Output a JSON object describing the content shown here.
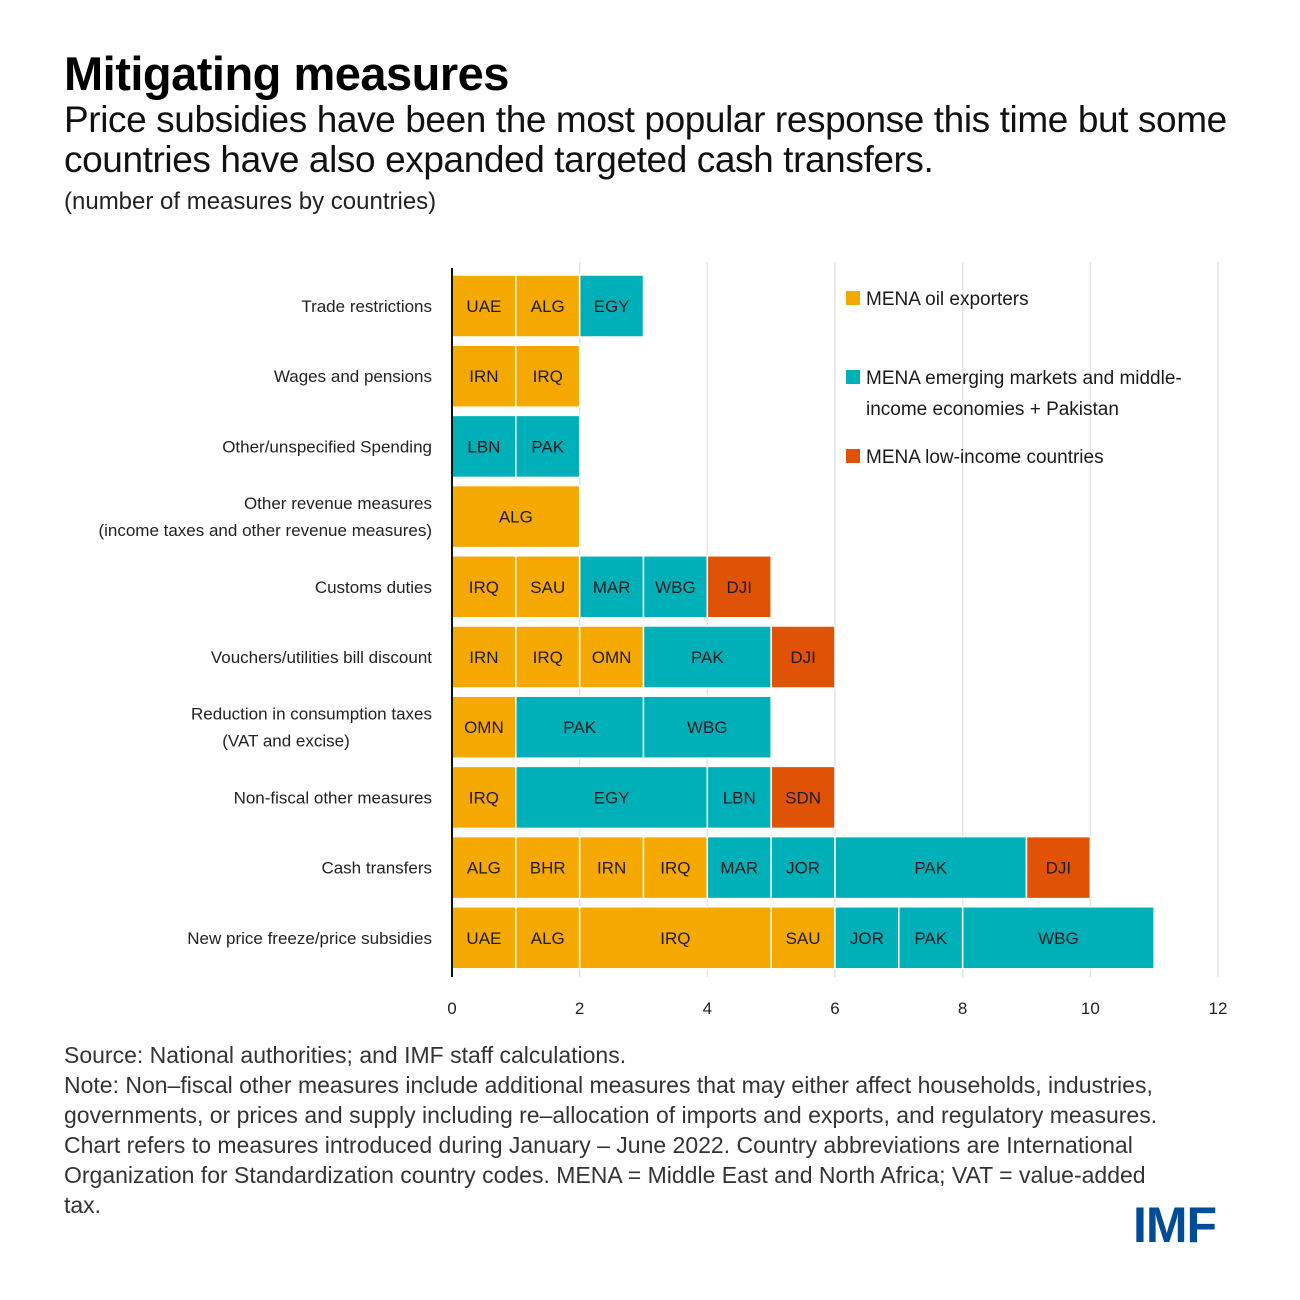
{
  "header": {
    "title": "Mitigating measures",
    "subtitle": "Price subsidies have been the most popular response this time but some countries have also expanded targeted cash transfers.",
    "units": "(number of measures by countries)"
  },
  "chart_data": {
    "type": "bar",
    "orientation": "horizontal-stacked",
    "title": "Mitigating measures",
    "xlabel": "",
    "ylabel": "",
    "xlim": [
      0,
      12
    ],
    "xticks": [
      0,
      2,
      4,
      6,
      8,
      10,
      12
    ],
    "grid": true,
    "legend_position": "top-right",
    "groups": [
      {
        "key": "oil",
        "name": "MENA oil exporters",
        "color": "#F5A800"
      },
      {
        "key": "em",
        "name": "MENA emerging markets and middle-income economies + Pakistan",
        "color": "#00B0B9"
      },
      {
        "key": "lic",
        "name": "MENA low-income countries",
        "color": "#E05206"
      }
    ],
    "categories": [
      {
        "label": [
          "Trade restrictions"
        ],
        "total": 3,
        "segments": [
          {
            "code": "UAE",
            "group": "oil",
            "value": 1
          },
          {
            "code": "ALG",
            "group": "oil",
            "value": 1
          },
          {
            "code": "EGY",
            "group": "em",
            "value": 1
          }
        ]
      },
      {
        "label": [
          "Wages and pensions"
        ],
        "total": 2,
        "segments": [
          {
            "code": "IRN",
            "group": "oil",
            "value": 1
          },
          {
            "code": "IRQ",
            "group": "oil",
            "value": 1
          }
        ]
      },
      {
        "label": [
          "Other/unspecified Spending"
        ],
        "total": 2,
        "segments": [
          {
            "code": "LBN",
            "group": "em",
            "value": 1
          },
          {
            "code": "PAK",
            "group": "em",
            "value": 1
          }
        ]
      },
      {
        "label": [
          "Other revenue measures",
          "(income taxes and other revenue measures)"
        ],
        "total": 2,
        "segments": [
          {
            "code": "ALG",
            "group": "oil",
            "value": 2
          }
        ]
      },
      {
        "label": [
          "Customs duties"
        ],
        "total": 5,
        "segments": [
          {
            "code": "IRQ",
            "group": "oil",
            "value": 1
          },
          {
            "code": "SAU",
            "group": "oil",
            "value": 1
          },
          {
            "code": "MAR",
            "group": "em",
            "value": 1
          },
          {
            "code": "WBG",
            "group": "em",
            "value": 1
          },
          {
            "code": "DJI",
            "group": "lic",
            "value": 1
          }
        ]
      },
      {
        "label": [
          "Vouchers/utilities bill discount"
        ],
        "total": 6,
        "segments": [
          {
            "code": "IRN",
            "group": "oil",
            "value": 1
          },
          {
            "code": "IRQ",
            "group": "oil",
            "value": 1
          },
          {
            "code": "OMN",
            "group": "oil",
            "value": 1
          },
          {
            "code": "PAK",
            "group": "em",
            "value": 2
          },
          {
            "code": "DJI",
            "group": "lic",
            "value": 1
          }
        ]
      },
      {
        "label": [
          "Reduction in consumption taxes",
          "(VAT and excise)"
        ],
        "total": 5,
        "segments": [
          {
            "code": "OMN",
            "group": "oil",
            "value": 1
          },
          {
            "code": "PAK",
            "group": "em",
            "value": 2
          },
          {
            "code": "WBG",
            "group": "em",
            "value": 2
          }
        ]
      },
      {
        "label": [
          "Non-fiscal other measures"
        ],
        "total": 6,
        "segments": [
          {
            "code": "IRQ",
            "group": "oil",
            "value": 1
          },
          {
            "code": "EGY",
            "group": "em",
            "value": 3
          },
          {
            "code": "LBN",
            "group": "em",
            "value": 1
          },
          {
            "code": "SDN",
            "group": "lic",
            "value": 1
          }
        ]
      },
      {
        "label": [
          "Cash transfers"
        ],
        "total": 10,
        "segments": [
          {
            "code": "ALG",
            "group": "oil",
            "value": 1
          },
          {
            "code": "BHR",
            "group": "oil",
            "value": 1
          },
          {
            "code": "IRN",
            "group": "oil",
            "value": 1
          },
          {
            "code": "IRQ",
            "group": "oil",
            "value": 1
          },
          {
            "code": "MAR",
            "group": "em",
            "value": 1
          },
          {
            "code": "JOR",
            "group": "em",
            "value": 1
          },
          {
            "code": "PAK",
            "group": "em",
            "value": 3
          },
          {
            "code": "DJI",
            "group": "lic",
            "value": 1
          }
        ]
      },
      {
        "label": [
          "New price freeze/price subsidies"
        ],
        "total": 11,
        "segments": [
          {
            "code": "UAE",
            "group": "oil",
            "value": 1
          },
          {
            "code": "ALG",
            "group": "oil",
            "value": 1
          },
          {
            "code": "IRQ",
            "group": "oil",
            "value": 3
          },
          {
            "code": "SAU",
            "group": "oil",
            "value": 1
          },
          {
            "code": "JOR",
            "group": "em",
            "value": 1
          },
          {
            "code": "PAK",
            "group": "em",
            "value": 1
          },
          {
            "code": "WBG",
            "group": "em",
            "value": 3
          }
        ]
      }
    ],
    "legend": [
      {
        "group": "oil",
        "lines": [
          "MENA oil exporters"
        ]
      },
      {
        "group": "em",
        "lines": [
          "MENA emerging markets and middle-",
          "income economies + Pakistan"
        ]
      },
      {
        "group": "lic",
        "lines": [
          "MENA low-income countries"
        ]
      }
    ]
  },
  "footer": {
    "source": "Source: National authorities; and IMF staff calculations.",
    "note": "Note:  Non–fiscal other measures include additional measures that may either affect households, industries, governments, or prices and supply including re–allocation of imports and exports, and regulatory measures. Chart refers to measures introduced during January – June 2022. Country abbreviations are International Organization for Standardization country codes. MENA = Middle East and North Africa; VAT = value-added tax."
  },
  "logo": {
    "text": "IMF",
    "color": "#004C97"
  }
}
